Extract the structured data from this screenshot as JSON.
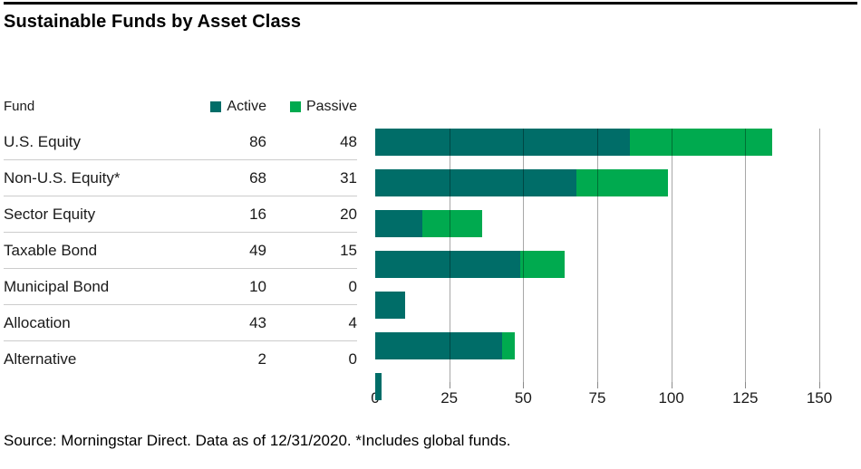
{
  "title": "Sustainable Funds by Asset Class",
  "table": {
    "header": "Fund",
    "legend": [
      {
        "label": "Active",
        "color": "#006D68"
      },
      {
        "label": "Passive",
        "color": "#00AA4F"
      }
    ],
    "rows": [
      {
        "label": "U.S. Equity",
        "active": 86,
        "passive": 48
      },
      {
        "label": "Non-U.S. Equity*",
        "active": 68,
        "passive": 31
      },
      {
        "label": "Sector Equity",
        "active": 16,
        "passive": 20
      },
      {
        "label": "Taxable Bond",
        "active": 49,
        "passive": 15
      },
      {
        "label": "Municipal Bond",
        "active": 10,
        "passive": 0
      },
      {
        "label": "Allocation",
        "active": 43,
        "passive": 4
      },
      {
        "label": "Alternative",
        "active": 2,
        "passive": 0
      }
    ]
  },
  "footer": "Source: Morningstar Direct. Data as of 12/31/2020. *Includes global funds.",
  "chart_data": {
    "type": "bar",
    "orientation": "horizontal",
    "stacked": true,
    "title": "Sustainable Funds by Asset Class",
    "categories": [
      "U.S. Equity",
      "Non-U.S. Equity*",
      "Sector Equity",
      "Taxable Bond",
      "Municipal Bond",
      "Allocation",
      "Alternative"
    ],
    "series": [
      {
        "name": "Active",
        "color": "#006D68",
        "values": [
          86,
          68,
          16,
          49,
          10,
          43,
          2
        ]
      },
      {
        "name": "Passive",
        "color": "#00AA4F",
        "values": [
          48,
          31,
          20,
          15,
          0,
          4,
          0
        ]
      }
    ],
    "xlabel": "",
    "ylabel": "",
    "xlim": [
      0,
      150
    ],
    "xticks": [
      0,
      25,
      50,
      75,
      100,
      125,
      150
    ],
    "grid": true,
    "legend_position": "top"
  }
}
